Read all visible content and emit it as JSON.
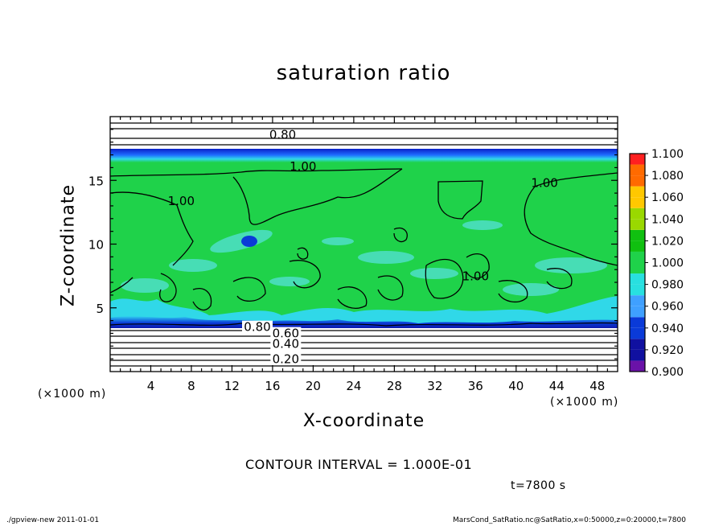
{
  "chart_data": {
    "type": "heatmap",
    "title": "saturation ratio",
    "xlabel": "X-coordinate",
    "ylabel": "Z-coordinate",
    "x_unit_label": "(×1000 m)",
    "z_unit_label": "(×1000 m)",
    "xlim": [
      0,
      50
    ],
    "ylim": [
      0,
      20
    ],
    "x_ticks": [
      4,
      8,
      12,
      16,
      20,
      24,
      28,
      32,
      36,
      40,
      44,
      48
    ],
    "y_ticks": [
      5,
      10,
      15
    ],
    "colorbar": {
      "levels": [
        0.9,
        0.92,
        0.94,
        0.96,
        0.98,
        1.0,
        1.02,
        1.04,
        1.06,
        1.08,
        1.1
      ],
      "labels": [
        "0.900",
        "0.920",
        "0.940",
        "0.960",
        "0.980",
        "1.000",
        "1.020",
        "1.040",
        "1.060",
        "1.080",
        "1.100"
      ],
      "colors": [
        "#6a12a8",
        "#1010a0",
        "#0a3ad8",
        "#3fa0ff",
        "#28e0e0",
        "#1fd24a",
        "#10c010",
        "#9ad800",
        "#ffc800",
        "#ff6a00",
        "#ff2020",
        "#ff9090"
      ]
    },
    "contour_labels": [
      {
        "text": "0.80",
        "x": 17.0,
        "z": 18.4
      },
      {
        "text": "1.00",
        "x": 19.0,
        "z": 15.9
      },
      {
        "text": "1.00",
        "x": 7.0,
        "z": 13.2
      },
      {
        "text": "1.00",
        "x": 42.8,
        "z": 14.6
      },
      {
        "text": "1.00",
        "x": 36.0,
        "z": 7.3
      },
      {
        "text": "0.80",
        "x": 14.5,
        "z": 3.3
      },
      {
        "text": "0.60",
        "x": 17.3,
        "z": 2.8
      },
      {
        "text": "0.40",
        "x": 17.3,
        "z": 2.0
      },
      {
        "text": "0.20",
        "x": 17.3,
        "z": 0.8
      }
    ],
    "field_summary": {
      "upper_boundary_dry_band_z": [
        17.2,
        20
      ],
      "saturation_band_z": [
        3.5,
        17.2
      ],
      "subsaturated_low_layer_z": [
        0,
        3.5
      ]
    },
    "contour_interval_text": "CONTOUR INTERVAL = 1.000E-01",
    "time_text": "t=7800 s"
  },
  "footer": {
    "left": "./gpview-new   2011-01-01",
    "right": "MarsCond_SatRatio.nc@SatRatio,x=0:50000,z=0:20000,t=7800"
  }
}
